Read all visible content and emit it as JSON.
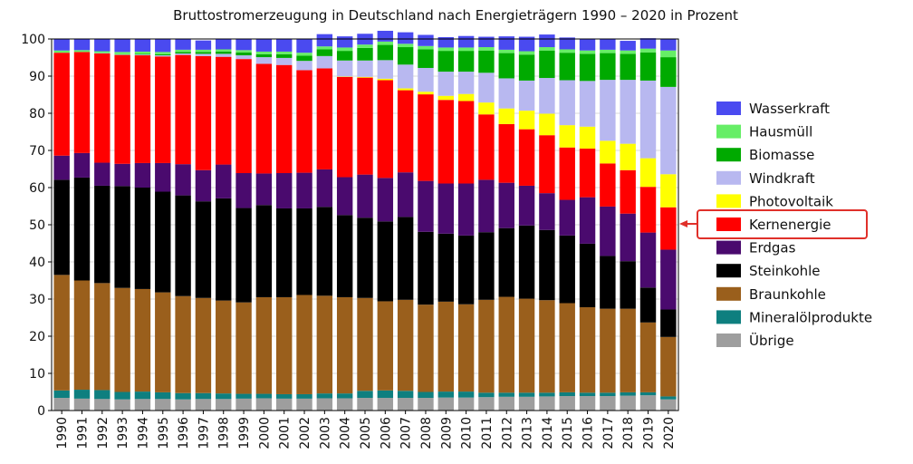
{
  "chart_data": {
    "type": "bar",
    "stacked": true,
    "title": "Bruttostromerzeugung in Deutschland nach Energieträgern 1990 – 2020 in Prozent",
    "xlabel": "",
    "ylabel": "",
    "ylim": [
      0,
      100
    ],
    "yticks": [
      0,
      10,
      20,
      30,
      40,
      50,
      60,
      70,
      80,
      90,
      100
    ],
    "grid": true,
    "legend_position": "right",
    "highlighted_series": "Kernenergie",
    "categories": [
      "1990",
      "1991",
      "1992",
      "1993",
      "1994",
      "1995",
      "1996",
      "1997",
      "1998",
      "1999",
      "2000",
      "2001",
      "2002",
      "2003",
      "2004",
      "2005",
      "2006",
      "2007",
      "2008",
      "2009",
      "2010",
      "2011",
      "2012",
      "2013",
      "2014",
      "2015",
      "2016",
      "2017",
      "2018",
      "2019",
      "2020"
    ],
    "series": [
      {
        "name": "Übrige",
        "color": "#9e9e9e",
        "values": [
          3.4,
          3.2,
          3.1,
          3.0,
          3.1,
          3.1,
          3.0,
          3.1,
          3.1,
          3.2,
          3.3,
          3.2,
          3.2,
          3.3,
          3.3,
          3.4,
          3.4,
          3.4,
          3.4,
          3.5,
          3.5,
          3.6,
          3.7,
          3.7,
          3.8,
          3.9,
          3.9,
          3.9,
          4.0,
          4.1,
          3.0
        ]
      },
      {
        "name": "Mineralölprodukte",
        "color": "#0e7f7f",
        "values": [
          2.0,
          2.4,
          2.4,
          2.0,
          2.0,
          1.8,
          1.7,
          1.6,
          1.5,
          1.3,
          1.2,
          1.2,
          1.2,
          1.3,
          1.3,
          1.9,
          2.0,
          1.9,
          1.6,
          1.6,
          1.6,
          1.2,
          1.1,
          1.1,
          1.0,
          1.0,
          0.9,
          0.9,
          0.9,
          0.8,
          0.8
        ]
      },
      {
        "name": "Braunkohle",
        "color": "#9a5f1c",
        "values": [
          31.1,
          29.4,
          28.8,
          28.0,
          27.6,
          26.9,
          26.1,
          25.6,
          25.0,
          24.6,
          26.0,
          26.1,
          26.7,
          26.3,
          25.9,
          25.0,
          24.0,
          24.5,
          23.5,
          24.2,
          23.5,
          25.0,
          25.8,
          25.3,
          24.9,
          24.0,
          23.0,
          22.6,
          22.5,
          18.8,
          16.0
        ]
      },
      {
        "name": "Steinkohle",
        "color": "#000000",
        "values": [
          25.6,
          27.7,
          26.2,
          27.4,
          27.3,
          27.1,
          27.1,
          26.0,
          27.5,
          25.4,
          24.8,
          23.9,
          23.3,
          23.9,
          22.1,
          21.6,
          21.5,
          22.3,
          19.6,
          18.3,
          18.5,
          18.2,
          18.5,
          19.7,
          18.9,
          18.2,
          17.1,
          14.2,
          12.8,
          9.4,
          7.4
        ]
      },
      {
        "name": "Erdgas",
        "color": "#4a0a6e",
        "values": [
          6.5,
          6.6,
          6.2,
          6.0,
          6.6,
          7.7,
          8.4,
          8.4,
          9.1,
          9.4,
          8.5,
          9.5,
          9.6,
          10.1,
          10.2,
          11.6,
          11.7,
          12.0,
          13.7,
          13.5,
          14.0,
          14.1,
          12.2,
          10.7,
          9.9,
          9.6,
          12.5,
          13.3,
          12.8,
          14.8,
          16.1
        ]
      },
      {
        "name": "Kernenergie",
        "color": "#ff0000",
        "values": [
          27.7,
          27.2,
          29.4,
          29.3,
          29.0,
          28.7,
          29.4,
          30.7,
          29.0,
          30.7,
          29.5,
          29.1,
          27.6,
          27.2,
          27.0,
          26.1,
          26.3,
          22.1,
          23.3,
          22.5,
          22.2,
          17.6,
          15.8,
          15.2,
          15.6,
          14.1,
          13.1,
          11.6,
          11.7,
          12.3,
          11.4
        ]
      },
      {
        "name": "Photovoltaik",
        "color": "#ffff00",
        "values": [
          0,
          0,
          0,
          0,
          0,
          0,
          0,
          0,
          0,
          0,
          0,
          0,
          0,
          0,
          0.1,
          0.2,
          0.4,
          0.5,
          0.7,
          1.1,
          1.9,
          3.2,
          4.2,
          5.0,
          5.8,
          6.0,
          5.9,
          6.1,
          7.1,
          7.7,
          8.9
        ]
      },
      {
        "name": "Windkraft",
        "color": "#b8b8f0",
        "values": [
          0,
          0,
          0.1,
          0.1,
          0.2,
          0.3,
          0.4,
          0.6,
          0.8,
          1.0,
          1.8,
          1.9,
          2.5,
          3.3,
          4.3,
          4.4,
          5.0,
          6.4,
          6.4,
          6.5,
          6.0,
          8.0,
          8.1,
          8.1,
          9.6,
          12.1,
          12.3,
          16.4,
          17.2,
          20.9,
          23.5
        ]
      },
      {
        "name": "Biomasse",
        "color": "#00aa00",
        "values": [
          0,
          0,
          0,
          0.1,
          0.2,
          0.3,
          0.4,
          0.5,
          0.6,
          0.8,
          0.8,
          1.0,
          1.4,
          1.8,
          2.6,
          3.4,
          4.1,
          4.7,
          5.0,
          5.6,
          5.6,
          6.0,
          6.8,
          7.0,
          7.4,
          7.4,
          7.3,
          7.2,
          7.0,
          7.6,
          8.0
        ]
      },
      {
        "name": "Hausmüll",
        "color": "#66ee66",
        "values": [
          0.6,
          0.5,
          0.5,
          0.6,
          0.6,
          0.6,
          0.6,
          0.6,
          0.6,
          0.6,
          0.7,
          0.7,
          0.8,
          0.8,
          0.9,
          0.9,
          0.9,
          0.9,
          0.9,
          0.9,
          0.9,
          0.9,
          0.9,
          0.9,
          0.9,
          0.9,
          0.9,
          0.9,
          0.9,
          1.0,
          1.8
        ]
      },
      {
        "name": "Wasserkraft",
        "color": "#4a4af0",
        "values": [
          3.1,
          3.0,
          3.3,
          3.5,
          3.4,
          3.5,
          2.9,
          2.5,
          2.8,
          3.0,
          3.4,
          3.4,
          3.7,
          3.3,
          3.0,
          2.9,
          2.9,
          3.1,
          3.0,
          2.8,
          3.1,
          2.8,
          3.6,
          3.9,
          3.4,
          3.2,
          3.1,
          3.0,
          2.6,
          2.8,
          3.1
        ]
      }
    ]
  }
}
